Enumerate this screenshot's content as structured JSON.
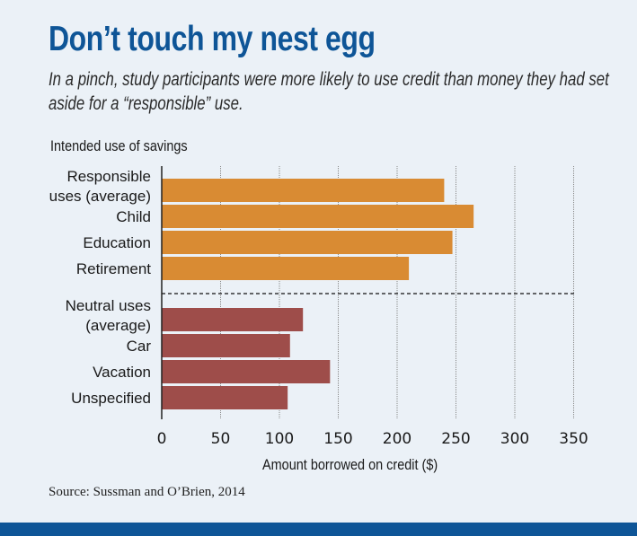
{
  "header": {
    "title": "Don’t touch my nest egg",
    "subtitle": "In a pinch, study participants were more likely to use credit than money they had set aside for a “responsible” use."
  },
  "source": "Source: Sussman and O’Brien, 2014",
  "colors": {
    "responsible": "#d98b33",
    "neutral": "#9e4d4a",
    "title": "#0e5597",
    "background": "#ebf1f7"
  },
  "chart_data": {
    "type": "bar",
    "orientation": "horizontal",
    "title": "Don’t touch my nest egg",
    "category_axis_title": "Intended use of savings",
    "xlabel": "Amount borrowed on credit ($)",
    "ylabel": "Intended use of savings",
    "xlim": [
      0,
      350
    ],
    "xticks": [
      0,
      50,
      100,
      150,
      200,
      250,
      300,
      350
    ],
    "grid": true,
    "groups": [
      {
        "name": "Responsible",
        "color": "#d98b33",
        "bars": [
          {
            "label": [
              "Responsible",
              "uses (average)"
            ],
            "value": 240
          },
          {
            "label": [
              "Child"
            ],
            "value": 265
          },
          {
            "label": [
              "Education"
            ],
            "value": 247
          },
          {
            "label": [
              "Retirement"
            ],
            "value": 210
          }
        ]
      },
      {
        "name": "Neutral",
        "color": "#9e4d4a",
        "bars": [
          {
            "label": [
              "Neutral uses",
              "(average)"
            ],
            "value": 120
          },
          {
            "label": [
              "Car"
            ],
            "value": 109
          },
          {
            "label": [
              "Vacation"
            ],
            "value": 143
          },
          {
            "label": [
              "Unspecified"
            ],
            "value": 107
          }
        ]
      }
    ]
  }
}
